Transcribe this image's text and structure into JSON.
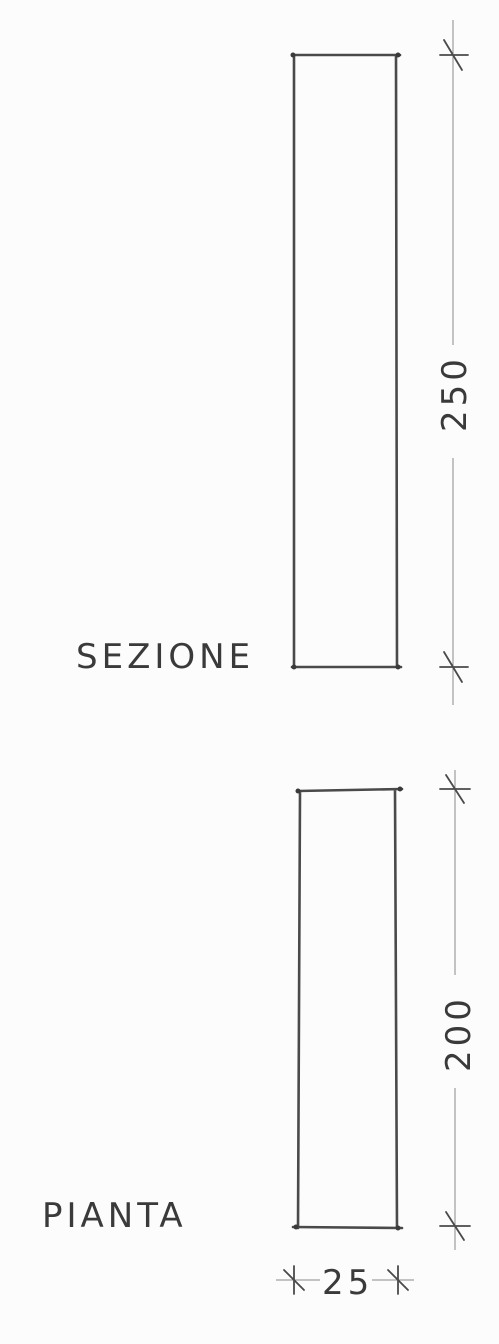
{
  "section": {
    "label": "SEZIONE",
    "height_dimension": "250"
  },
  "plan": {
    "label": "PIANTA",
    "depth_dimension": "200",
    "width_dimension": "25"
  },
  "colors": {
    "ink": "#4a4a4a",
    "paper": "#fdfcfd"
  }
}
